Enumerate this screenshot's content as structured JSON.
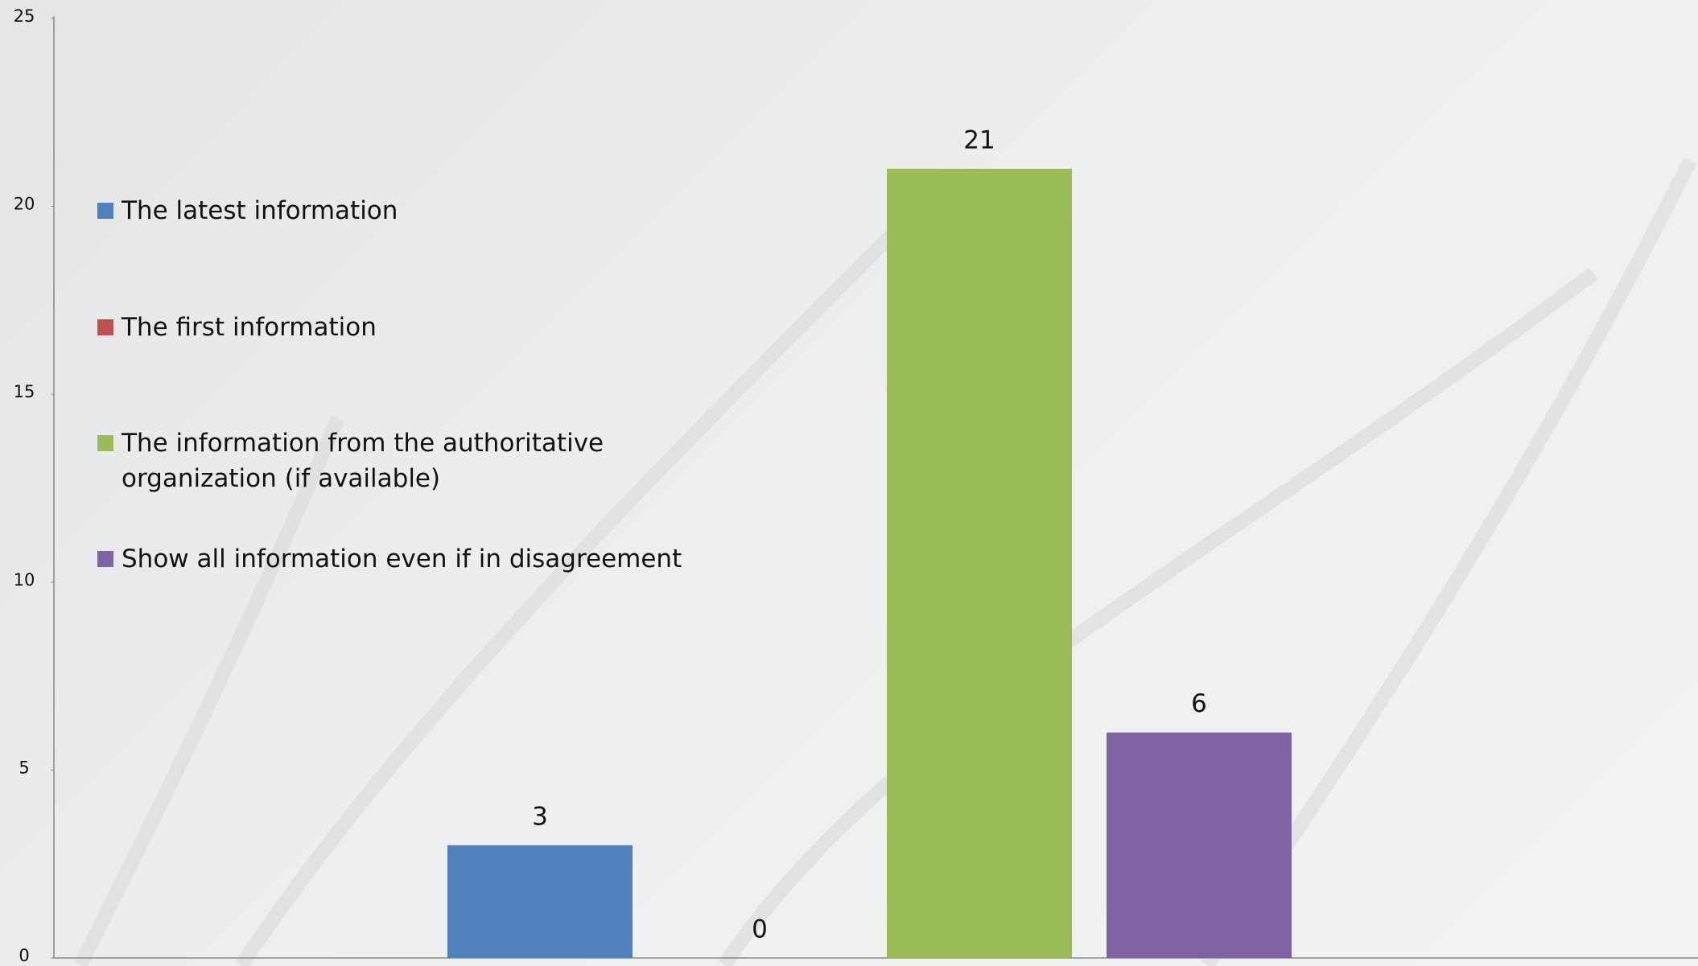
{
  "chart_data": {
    "type": "bar",
    "categories": [
      null
    ],
    "series": [
      {
        "name": "The latest information",
        "color": "#4f81bd",
        "values": [
          3
        ]
      },
      {
        "name": "The first information",
        "color": "#c0504d",
        "values": [
          0
        ]
      },
      {
        "name": "The information from the authoritative organization (if available)",
        "color": "#9bbb59",
        "values": [
          21
        ]
      },
      {
        "name": "Show all information even if in disagreement",
        "color": "#8064a2",
        "values": [
          6
        ]
      }
    ],
    "ylim": [
      0,
      25
    ],
    "yticks": [
      0,
      5,
      10,
      15,
      20,
      25
    ],
    "grid": false
  }
}
